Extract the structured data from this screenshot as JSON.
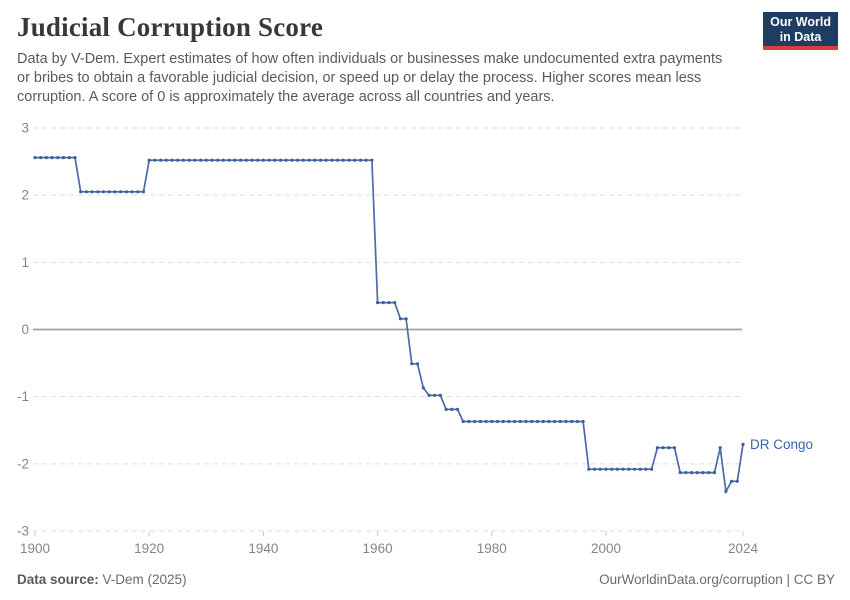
{
  "header": {
    "title": "Judicial Corruption Score",
    "subtitle_lines": [
      "Data by V-Dem. Expert estimates of how often individuals or businesses make undocumented extra payments",
      "or bribes to obtain a favorable judicial decision, or speed up or delay the process. Higher scores mean less",
      "corruption. A score of 0 is approximately the average across all countries and years."
    ]
  },
  "logo": {
    "line1": "Our World",
    "line2": "in Data",
    "bg_color": "#1d3d63",
    "accent_color": "#dc3e3c"
  },
  "footer": {
    "source_label": "Data source:",
    "source_value": " V-Dem (2025)",
    "credit": "OurWorldinData.org/corruption | CC BY"
  },
  "chart_data": {
    "type": "line",
    "title": "Judicial Corruption Score",
    "entity_label": "DR Congo",
    "xlabel": "",
    "ylabel": "",
    "xlim": [
      1900,
      2024
    ],
    "ylim": [
      -3,
      3
    ],
    "x_ticks": [
      1900,
      1920,
      1940,
      1960,
      1980,
      2000,
      2024
    ],
    "y_ticks": [
      3,
      2,
      1,
      0,
      -1,
      -2,
      -3
    ],
    "grid": true,
    "legend_position": "end-of-line-label",
    "series": [
      {
        "name": "DR Congo",
        "segments": [
          {
            "from": 1900,
            "to": 1907,
            "value": 2.56
          },
          {
            "from": 1908,
            "to": 1919,
            "value": 2.05
          },
          {
            "from": 1920,
            "to": 1959,
            "value": 2.52
          },
          {
            "from": 1960,
            "to": 1963,
            "value": 0.4
          },
          {
            "from": 1964,
            "to": 1965,
            "value": 0.16
          },
          {
            "from": 1966,
            "to": 1967,
            "value": -0.51
          },
          {
            "from": 1968,
            "to": 1968,
            "value": -0.87
          },
          {
            "from": 1969,
            "to": 1971,
            "value": -0.98
          },
          {
            "from": 1972,
            "to": 1974,
            "value": -1.19
          },
          {
            "from": 1975,
            "to": 1996,
            "value": -1.37
          },
          {
            "from": 1997,
            "to": 2008,
            "value": -2.08
          },
          {
            "from": 2009,
            "to": 2012,
            "value": -1.76
          },
          {
            "from": 2013,
            "to": 2019,
            "value": -2.13
          },
          {
            "from": 2020,
            "to": 2020,
            "value": -1.76
          },
          {
            "from": 2021,
            "to": 2021,
            "value": -2.41
          },
          {
            "from": 2022,
            "to": 2023,
            "value": -2.26
          },
          {
            "from": 2024,
            "to": 2024,
            "value": -1.71
          }
        ]
      }
    ],
    "colors": {
      "line": "#4a6ba8",
      "marker": "#3e5f9e",
      "entity_label": "#3a62a8",
      "grid": "#dedede",
      "zero_line": "#a0a0a0",
      "tick_text": "#858585",
      "tick_mark": "#c9c9c9"
    }
  }
}
